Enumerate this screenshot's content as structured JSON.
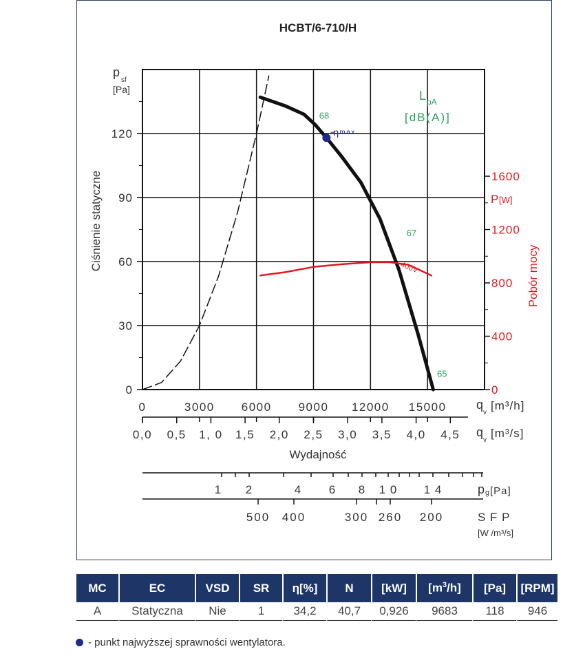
{
  "chart_data": {
    "type": "line",
    "title": "HCBT/6-710/H",
    "y_axis": {
      "symbol": "p",
      "subscript": "sf",
      "unit": "[Pa]",
      "label": "Ciśnienie statyczne",
      "ticks": [
        0,
        30,
        60,
        90,
        120
      ],
      "range": [
        0,
        150
      ]
    },
    "y2_axis": {
      "symbol": "P",
      "unit": "[W]",
      "label": "Pobór mocy",
      "ticks": [
        0,
        400,
        800,
        1200,
        1600
      ],
      "range": [
        0,
        2400
      ]
    },
    "x_axis": {
      "symbol": "q",
      "subscript": "v",
      "unit_m3h": "[m³/h]",
      "unit_m3s": "[m³/s]",
      "label": "Wydajność",
      "ticks_m3h": [
        "0",
        "3000",
        "6000",
        "9000",
        "12000",
        "15000"
      ],
      "ticks_m3s": [
        "0,0",
        "0,5",
        "1, 0",
        "1,5",
        "2,0",
        "2,5",
        "3,0",
        "3,5",
        "4,0",
        "4,5"
      ],
      "range_m3h": [
        0,
        18000
      ]
    },
    "sound": {
      "symbol": "L",
      "subscript": "pA",
      "unit": "[dB(A)]"
    },
    "series": [
      {
        "name": "",
        "kind": "fan-curve",
        "color": "#111111",
        "x": [
          6200,
          7500,
          8500,
          9100,
          9683,
          10500,
          11500,
          12500,
          13500,
          14500,
          15300
        ],
        "y": [
          137,
          133,
          129,
          124,
          118,
          109,
          97,
          80,
          56,
          26,
          0
        ]
      },
      {
        "name": "400V",
        "kind": "power",
        "color": "#e0191f",
        "x": [
          6200,
          7500,
          9000,
          10500,
          12000,
          13000,
          14000,
          15200
        ],
        "y": [
          855,
          880,
          920,
          940,
          955,
          955,
          935,
          855
        ]
      },
      {
        "name": "",
        "kind": "system-curve",
        "color": "#111111",
        "dashed": true,
        "x": [
          0,
          1000,
          2000,
          3000,
          4000,
          5000,
          6000,
          6650
        ],
        "y": [
          0,
          3.3,
          13.3,
          30,
          53,
          83,
          120,
          147
        ]
      }
    ],
    "annotations": [
      {
        "text": "68",
        "x": 9300,
        "y": 127,
        "color": "#2aa05a"
      },
      {
        "text": "67",
        "x": 13900,
        "y": 72,
        "color": "#2aa05a"
      },
      {
        "text": "65",
        "x": 15500,
        "y": 6,
        "color": "#2aa05a"
      }
    ],
    "eta_max": {
      "label": "η",
      "sub": "max",
      "x": 9683,
      "y": 118,
      "color": "#1f2a8c"
    },
    "pg_scale": {
      "unit": "[Pa]",
      "symbol": "p",
      "subscript": "g",
      "labels": [
        "1",
        "2",
        "4",
        "6",
        "8",
        "1 0",
        "1 4"
      ]
    },
    "sfp_scale": {
      "label": "S F P",
      "unit": "[W /m³/s]",
      "labels": [
        "500",
        "400",
        "300",
        "260",
        "200"
      ]
    }
  },
  "table": {
    "headers": [
      "MC",
      "EC",
      "VSD",
      "SR",
      "η[%]",
      "N",
      "[kW]",
      "[m³/h]",
      "[Pa]",
      "[RPM]"
    ],
    "row": [
      "A",
      "Statyczna",
      "Nie",
      "1",
      "34,2",
      "40,7",
      "0,926",
      "9683",
      "118",
      "946"
    ]
  },
  "legend_text": "- punkt najwyższej sprawności wentylatora."
}
